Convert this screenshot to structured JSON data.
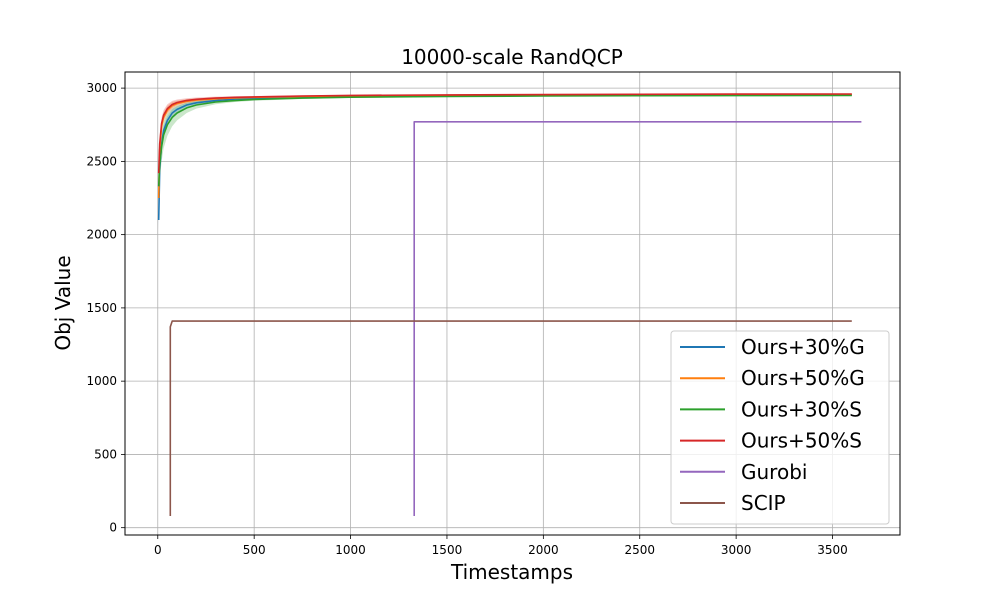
{
  "chart_data": {
    "type": "line",
    "title": "10000-scale RandQCP",
    "xlabel": "Timestamps",
    "ylabel": "Obj Value",
    "xlim": [
      -170,
      3850
    ],
    "ylim": [
      -50,
      3110
    ],
    "xticks": [
      0,
      500,
      1000,
      1500,
      2000,
      2500,
      3000,
      3500
    ],
    "yticks": [
      0,
      500,
      1000,
      1500,
      2000,
      2500,
      3000
    ],
    "grid": true,
    "legend_position": "bottom-right",
    "series": [
      {
        "name": "Ours+30%G",
        "color": "#1f77b4",
        "x": [
          5,
          10,
          20,
          30,
          50,
          75,
          100,
          150,
          200,
          300,
          400,
          500,
          750,
          1000,
          1500,
          2000,
          2500,
          3000,
          3600
        ],
        "y": [
          2100,
          2440,
          2620,
          2710,
          2780,
          2830,
          2855,
          2885,
          2900,
          2915,
          2925,
          2930,
          2937,
          2942,
          2946,
          2949,
          2951,
          2952,
          2953
        ],
        "band": [
          60,
          50,
          40,
          35,
          30,
          25,
          20,
          15,
          12,
          10,
          8,
          6,
          5,
          4,
          3,
          3,
          3,
          3,
          3
        ]
      },
      {
        "name": "Ours+50%G",
        "color": "#ff7f0e",
        "x": [
          5,
          10,
          20,
          30,
          50,
          75,
          100,
          150,
          200,
          300,
          400,
          500,
          750,
          1000,
          1500,
          2000,
          2500,
          3000,
          3600
        ],
        "y": [
          2250,
          2580,
          2740,
          2800,
          2850,
          2880,
          2895,
          2910,
          2918,
          2927,
          2933,
          2937,
          2943,
          2947,
          2951,
          2953,
          2955,
          2956,
          2957
        ],
        "band": [
          60,
          50,
          40,
          35,
          30,
          25,
          20,
          15,
          12,
          10,
          8,
          6,
          5,
          4,
          3,
          3,
          3,
          3,
          3
        ]
      },
      {
        "name": "Ours+30%S",
        "color": "#2ca02c",
        "x": [
          5,
          10,
          20,
          30,
          50,
          75,
          100,
          150,
          200,
          300,
          400,
          500,
          750,
          1000,
          1500,
          2000,
          2500,
          3000,
          3600
        ],
        "y": [
          2330,
          2480,
          2600,
          2680,
          2750,
          2800,
          2830,
          2865,
          2885,
          2905,
          2915,
          2922,
          2932,
          2938,
          2943,
          2946,
          2948,
          2949,
          2950
        ],
        "band": [
          120,
          110,
          100,
          90,
          75,
          60,
          50,
          35,
          25,
          15,
          10,
          8,
          6,
          5,
          4,
          3,
          3,
          3,
          3
        ]
      },
      {
        "name": "Ours+50%S",
        "color": "#d62728",
        "x": [
          5,
          10,
          20,
          30,
          50,
          75,
          100,
          150,
          200,
          300,
          400,
          500,
          750,
          1000,
          1500,
          2000,
          2500,
          3000,
          3600
        ],
        "y": [
          2420,
          2620,
          2760,
          2815,
          2860,
          2888,
          2902,
          2916,
          2924,
          2932,
          2937,
          2940,
          2946,
          2950,
          2954,
          2956,
          2958,
          2959,
          2960
        ],
        "band": [
          60,
          50,
          40,
          35,
          30,
          25,
          20,
          15,
          12,
          10,
          8,
          6,
          5,
          4,
          3,
          3,
          3,
          3,
          3
        ]
      },
      {
        "name": "Gurobi",
        "color": "#9467bd",
        "x": [
          1330,
          1330,
          3650
        ],
        "y": [
          80,
          2770,
          2770
        ]
      },
      {
        "name": "SCIP",
        "color": "#8c564b",
        "x": [
          65,
          65,
          75,
          3600
        ],
        "y": [
          80,
          1370,
          1410,
          1410
        ]
      }
    ]
  }
}
